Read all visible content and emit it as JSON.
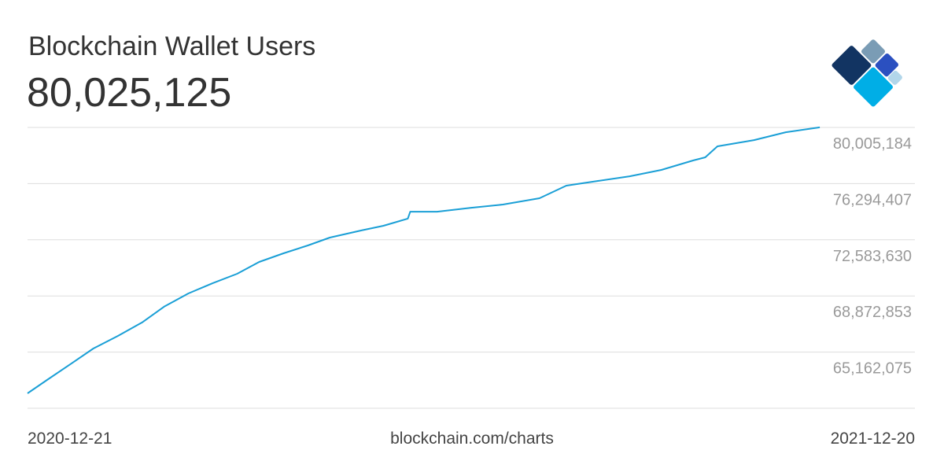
{
  "chart_data": {
    "type": "line",
    "title": "Blockchain Wallet Users",
    "current_value": "80,025,125",
    "source": "blockchain.com/charts",
    "color": "#1a9fd6",
    "grid": true,
    "x": [
      "2020-12-21",
      "2020-12-29",
      "2021-01-08",
      "2021-01-17",
      "2021-01-27",
      "2021-02-06",
      "2021-02-15",
      "2021-02-25",
      "2021-03-07",
      "2021-03-17",
      "2021-03-26",
      "2021-04-05",
      "2021-04-15",
      "2021-04-24",
      "2021-05-07",
      "2021-05-16",
      "2021-05-26",
      "2021-05-27",
      "2021-06-07",
      "2021-06-21",
      "2021-07-04",
      "2021-07-19",
      "2021-07-30",
      "2021-08-12",
      "2021-08-25",
      "2021-09-07",
      "2021-09-20",
      "2021-09-25",
      "2021-09-30",
      "2021-10-15",
      "2021-10-28",
      "2021-11-11"
    ],
    "values": [
      62440000,
      63320000,
      64410000,
      65400000,
      66230000,
      67120000,
      68160000,
      69040000,
      69720000,
      70340000,
      71120000,
      71690000,
      72210000,
      72730000,
      73200000,
      73510000,
      73980000,
      74440000,
      74440000,
      74700000,
      74910000,
      75330000,
      76160000,
      76470000,
      76780000,
      77200000,
      77820000,
      78030000,
      78760000,
      79170000,
      79690000,
      80010000
    ],
    "xlim": [
      "2020-12-21",
      "2021-12-20"
    ],
    "ylim": [
      61451298,
      80005184
    ],
    "yticks": [
      {
        "value": 65162075,
        "label": "65,162,075"
      },
      {
        "value": 68872853,
        "label": "68,872,853"
      },
      {
        "value": 72583630,
        "label": "72,583,630"
      },
      {
        "value": 76294407,
        "label": "76,294,407"
      },
      {
        "value": 80005184,
        "label": "80,005,184"
      }
    ]
  }
}
